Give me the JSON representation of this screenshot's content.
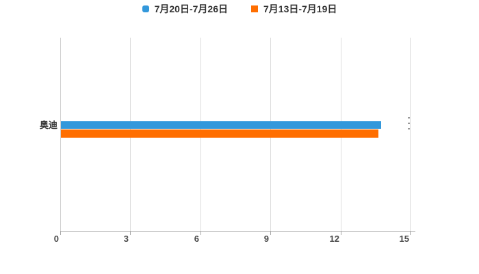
{
  "chart_data": {
    "type": "bar",
    "orientation": "horizontal",
    "title": "",
    "xlabel": "",
    "ylabel": "",
    "categories": [
      "奥迪"
    ],
    "series": [
      {
        "name": "7月20日-7月26日",
        "color": "#3398DB",
        "marker": "rounded-square",
        "values": [
          13.7
        ]
      },
      {
        "name": "7月13日-7月19日",
        "color": "#FF6E00",
        "marker": "square",
        "values": [
          13.6
        ]
      }
    ],
    "xlim": [
      0,
      15
    ],
    "x_ticks": [
      0,
      3,
      6,
      9,
      12,
      15
    ],
    "grid": true,
    "legend_position": "top-center",
    "background_color": "#FFFFFF",
    "gridline_color": "#DCDCDC",
    "axis_line_color": "#A6A6A6",
    "tick_label_color": "#4A4A4A",
    "text_color": "#333333"
  }
}
